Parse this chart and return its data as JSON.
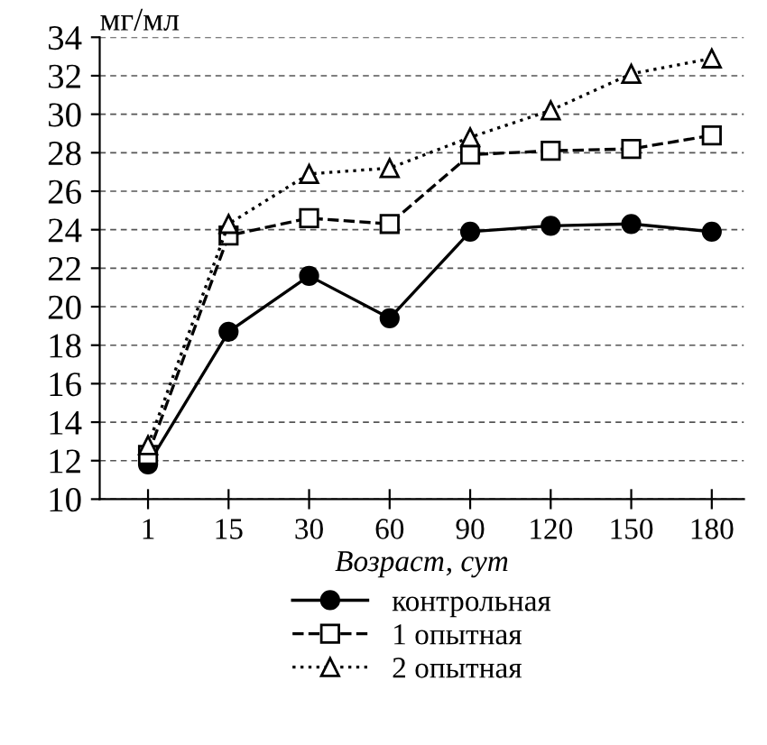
{
  "chart_data": {
    "type": "line",
    "ylabel": "мг/мл",
    "xlabel": "Возраст, сут",
    "categories": [
      "1",
      "15",
      "30",
      "60",
      "90",
      "120",
      "150",
      "180"
    ],
    "series": [
      {
        "name": "контрольная",
        "color": "#000000",
        "marker": "circle",
        "line_style": "solid",
        "values": [
          11.8,
          18.7,
          21.6,
          19.4,
          23.9,
          24.2,
          24.3,
          23.9
        ]
      },
      {
        "name": "1 опытная",
        "color": "#000000",
        "marker": "square",
        "line_style": "dashed",
        "values": [
          12.3,
          23.7,
          24.6,
          24.3,
          27.9,
          28.1,
          28.2,
          28.9
        ]
      },
      {
        "name": "2 опытная",
        "color": "#000000",
        "marker": "triangle",
        "line_style": "dotted",
        "values": [
          12.8,
          24.3,
          26.9,
          27.2,
          28.8,
          30.2,
          32.1,
          32.9
        ]
      }
    ],
    "ylim": [
      10,
      34
    ],
    "yticks": [
      10,
      12,
      14,
      16,
      18,
      20,
      22,
      24,
      26,
      28,
      30,
      32,
      34
    ],
    "grid": "y",
    "legend": "bottom"
  }
}
